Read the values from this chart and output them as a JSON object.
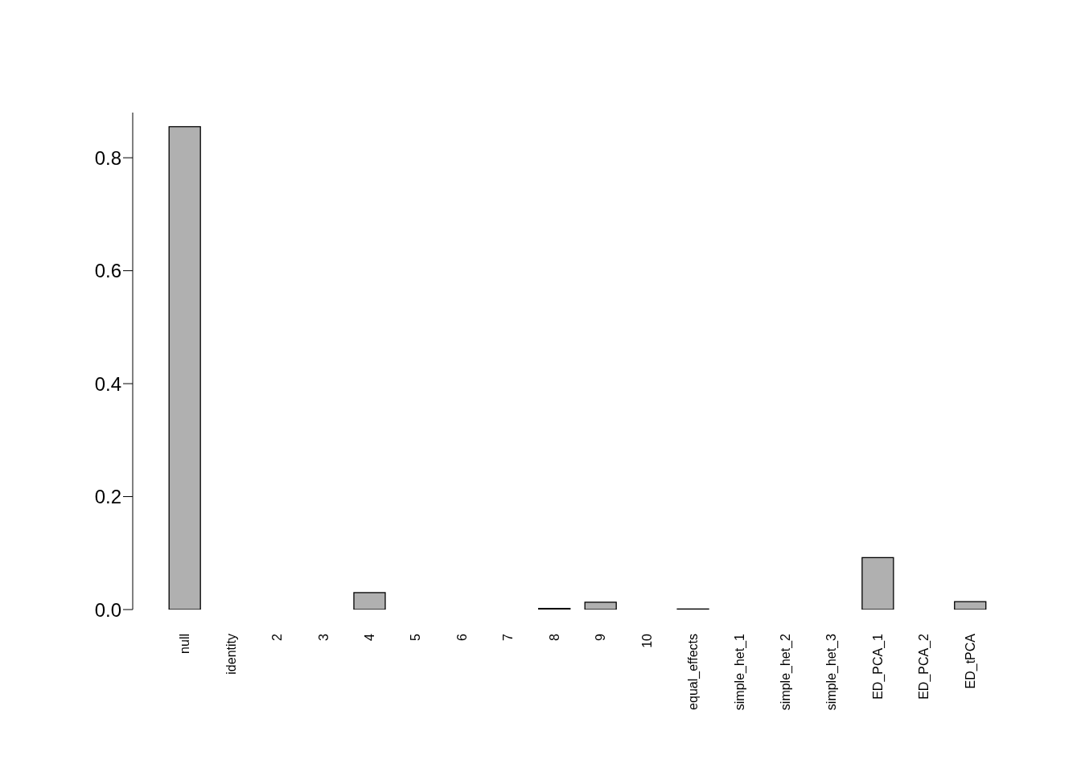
{
  "chart_data": {
    "type": "bar",
    "categories": [
      "null",
      "identity",
      "2",
      "3",
      "4",
      "5",
      "6",
      "7",
      "8",
      "9",
      "10",
      "equal_effects",
      "simple_het_1",
      "simple_het_2",
      "simple_het_3",
      "ED_PCA_1",
      "ED_PCA_2",
      "ED_tPCA"
    ],
    "values": [
      0.855,
      0,
      0,
      0,
      0.03,
      0,
      0,
      0,
      0.002,
      0.013,
      0,
      0.001,
      0,
      0,
      0,
      0.092,
      0,
      0.014
    ],
    "color": "#b0b0b0",
    "ylim": [
      0,
      0.88
    ],
    "yticks": [
      {
        "value": 0,
        "label": "0.0"
      },
      {
        "value": 0.2,
        "label": "0.2"
      },
      {
        "value": 0.4,
        "label": "0.4"
      },
      {
        "value": 0.6,
        "label": "0.6"
      },
      {
        "value": 0.8,
        "label": "0.8"
      }
    ],
    "grid": false,
    "legend": false
  }
}
